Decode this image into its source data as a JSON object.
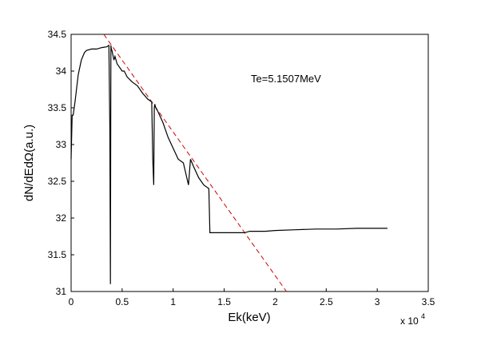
{
  "chart_data": {
    "type": "line",
    "xlabel": "Ek(keV)",
    "ylabel": "dN/dEdΩ(a.u.)",
    "x_multiplier": "x 10",
    "x_multiplier_exp": "4",
    "annotation": "Te=5.1507MeV",
    "xlim": [
      0,
      35000
    ],
    "ylim": [
      31,
      34.5
    ],
    "xticks": [
      0,
      5000,
      10000,
      15000,
      20000,
      25000,
      30000,
      35000
    ],
    "xtick_labels": [
      "0",
      "0.5",
      "1",
      "1.5",
      "2",
      "2.5",
      "3",
      "3.5"
    ],
    "yticks": [
      31,
      31.5,
      32,
      32.5,
      33,
      33.5,
      34,
      34.5
    ],
    "ytick_labels": [
      "31",
      "31.5",
      "32",
      "32.5",
      "33",
      "33.5",
      "34",
      "34.5"
    ],
    "grid": false,
    "series": [
      {
        "color": "#000000",
        "style": "solid",
        "x": [
          0,
          100,
          200,
          400,
          700,
          1000,
          1300,
          1500,
          2000,
          2500,
          3000,
          3500,
          3700,
          3800,
          3850,
          3900,
          3950,
          4000,
          4200,
          4300,
          4500,
          5000,
          5200,
          5500,
          6000,
          6500,
          7000,
          7500,
          7900,
          8000,
          8100,
          8150,
          8200,
          8300,
          8500,
          9000,
          9500,
          10000,
          10500,
          11000,
          11500,
          11700,
          12000,
          12500,
          13000,
          13500,
          13600,
          14000,
          14500,
          15000,
          15500,
          16000,
          16500,
          17000,
          17500,
          18000,
          18500,
          19000,
          20000,
          22000,
          24000,
          26000,
          28000,
          30000,
          31000
        ],
        "y": [
          32.8,
          33.4,
          33.4,
          33.6,
          33.95,
          34.15,
          34.25,
          34.28,
          34.3,
          34.3,
          34.32,
          34.33,
          34.35,
          33.2,
          31.1,
          34.35,
          34.3,
          34.28,
          34.15,
          34.2,
          34.1,
          34.0,
          34.0,
          33.92,
          33.85,
          33.8,
          33.7,
          33.62,
          33.58,
          32.8,
          32.45,
          33.5,
          33.55,
          33.5,
          33.45,
          33.3,
          33.1,
          32.95,
          32.8,
          32.75,
          32.45,
          32.8,
          32.7,
          32.55,
          32.45,
          32.4,
          31.8,
          31.8,
          31.8,
          31.8,
          31.8,
          31.8,
          31.8,
          31.8,
          31.82,
          31.82,
          31.82,
          31.82,
          31.83,
          31.84,
          31.85,
          31.85,
          31.86,
          31.86,
          31.86
        ]
      },
      {
        "color": "#d00000",
        "style": "dashed",
        "x": [
          3200,
          21100
        ],
        "y": [
          34.5,
          31
        ]
      }
    ]
  }
}
